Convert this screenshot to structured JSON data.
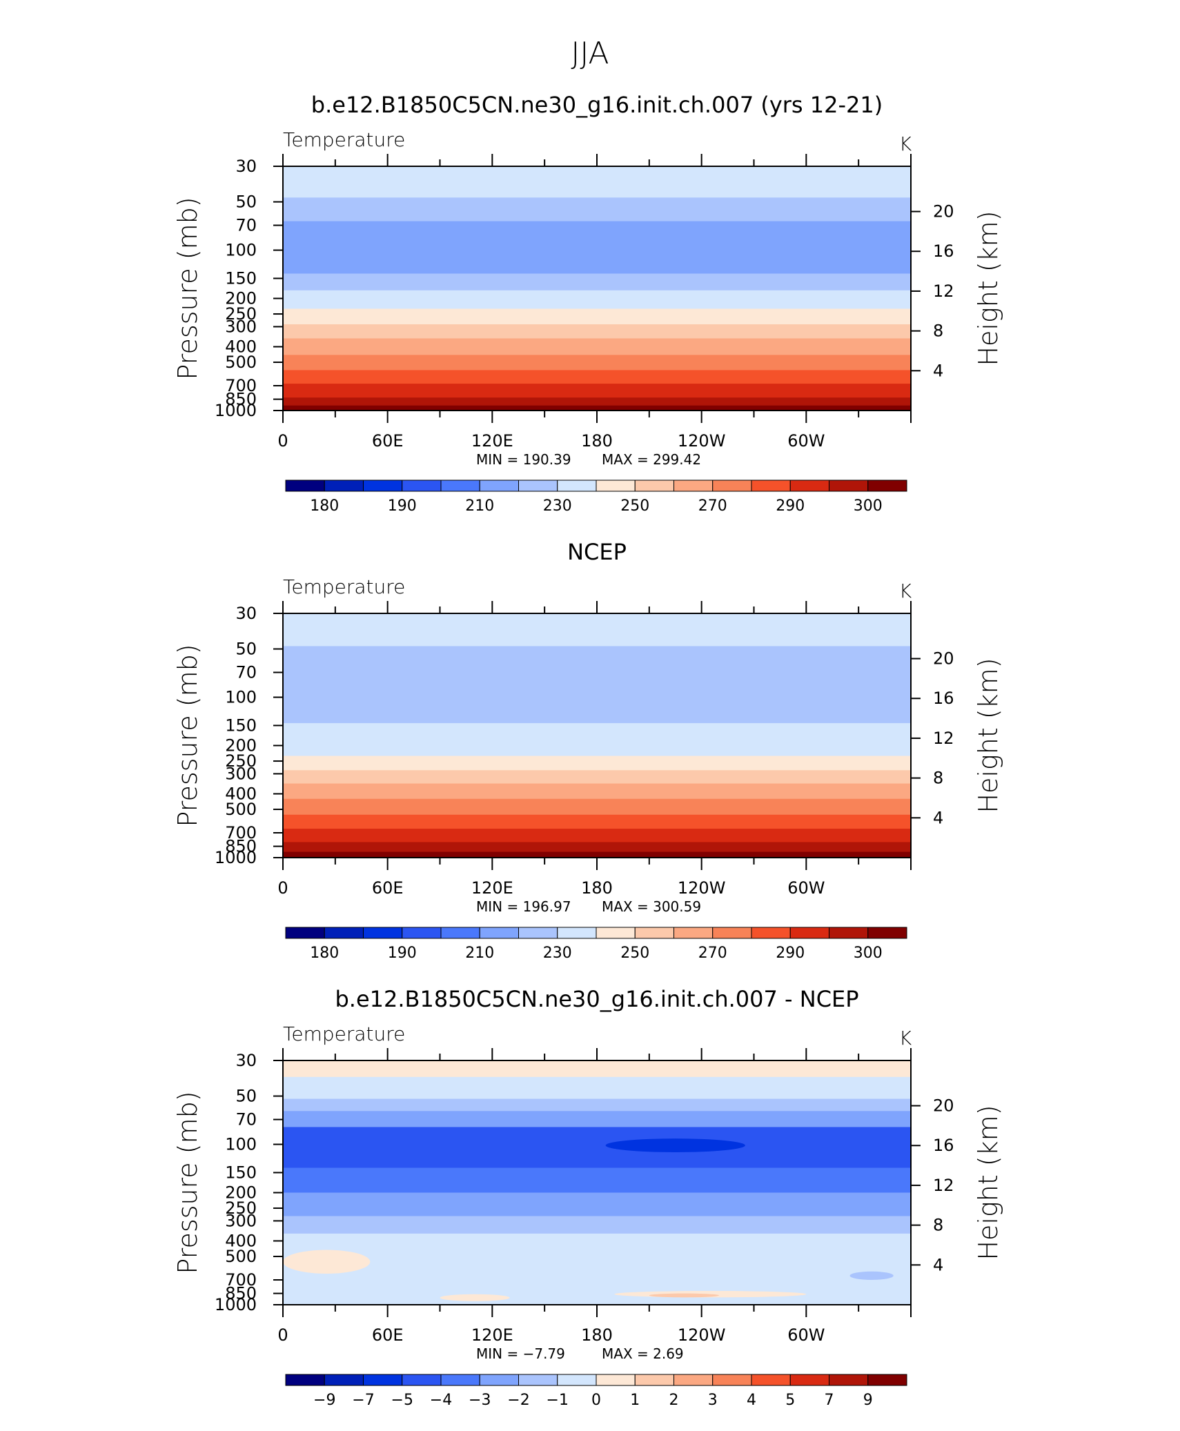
{
  "title": "JJA",
  "palette": [
    "#00007f",
    "#0020b8",
    "#0033e0",
    "#2b55f2",
    "#4a78fb",
    "#7fa4fd",
    "#aac4fd",
    "#d3e6fd",
    "#fde8d6",
    "#fcc9ab",
    "#fba882",
    "#f88358",
    "#f5522a",
    "#d92a12",
    "#b01508",
    "#800000"
  ],
  "chart_data": [
    {
      "type": "heatmap",
      "title": "b.e12.B1850C5CN.ne30_g16.init.ch.007 (yrs 12-21)",
      "variable": "Temperature",
      "units": "K",
      "ylabel": "Pressure (mb)",
      "y2label": "Height (km)",
      "x_ticks": [
        "0",
        "60E",
        "120E",
        "180",
        "120W",
        "60W"
      ],
      "x_tick_lon": [
        0,
        60,
        120,
        180,
        240,
        300
      ],
      "xlim": [
        0,
        360
      ],
      "y_ticks": [
        "30",
        "50",
        "70",
        "100",
        "150",
        "200",
        "250",
        "300",
        "400",
        "500",
        "700",
        "850",
        "1000"
      ],
      "ylim": [
        1000,
        30
      ],
      "y_scale": "log",
      "y2_ticks": [
        "20",
        "16",
        "12",
        "8",
        "4"
      ],
      "min_text": "MIN =  190.39",
      "max_text": "MAX =  299.42",
      "min": 190.39,
      "max": 299.42,
      "levels": [
        175,
        180,
        185,
        190,
        200,
        210,
        220,
        230,
        240,
        250,
        260,
        270,
        280,
        290,
        295,
        300
      ],
      "colorbar_labels": [
        "180",
        "190",
        "210",
        "230",
        "250",
        "270",
        "290",
        "300"
      ],
      "bands": [
        {
          "p_top": 30,
          "p_bottom": 47,
          "value": 222
        },
        {
          "p_top": 47,
          "p_bottom": 66,
          "value": 215
        },
        {
          "p_top": 66,
          "p_bottom": 140,
          "value": 205
        },
        {
          "p_top": 140,
          "p_bottom": 178,
          "value": 215
        },
        {
          "p_top": 178,
          "p_bottom": 232,
          "value": 222
        },
        {
          "p_top": 232,
          "p_bottom": 290,
          "value": 235
        },
        {
          "p_top": 290,
          "p_bottom": 355,
          "value": 245
        },
        {
          "p_top": 355,
          "p_bottom": 450,
          "value": 255
        },
        {
          "p_top": 450,
          "p_bottom": 560,
          "value": 265
        },
        {
          "p_top": 560,
          "p_bottom": 680,
          "value": 275
        },
        {
          "p_top": 680,
          "p_bottom": 830,
          "value": 285
        },
        {
          "p_top": 830,
          "p_bottom": 930,
          "value": 292
        },
        {
          "p_top": 930,
          "p_bottom": 1000,
          "value": 297
        }
      ]
    },
    {
      "type": "heatmap",
      "title": "NCEP",
      "variable": "Temperature",
      "units": "K",
      "ylabel": "Pressure (mb)",
      "y2label": "Height (km)",
      "x_ticks": [
        "0",
        "60E",
        "120E",
        "180",
        "120W",
        "60W"
      ],
      "x_tick_lon": [
        0,
        60,
        120,
        180,
        240,
        300
      ],
      "xlim": [
        0,
        360
      ],
      "y_ticks": [
        "30",
        "50",
        "70",
        "100",
        "150",
        "200",
        "250",
        "300",
        "400",
        "500",
        "700",
        "850",
        "1000"
      ],
      "ylim": [
        1000,
        30
      ],
      "y_scale": "log",
      "y2_ticks": [
        "20",
        "16",
        "12",
        "8",
        "4"
      ],
      "min_text": "MIN =  196.97",
      "max_text": "MAX =  300.59",
      "min": 196.97,
      "max": 300.59,
      "levels": [
        175,
        180,
        185,
        190,
        200,
        210,
        220,
        230,
        240,
        250,
        260,
        270,
        280,
        290,
        295,
        300
      ],
      "colorbar_labels": [
        "180",
        "190",
        "210",
        "230",
        "250",
        "270",
        "290",
        "300"
      ],
      "bands": [
        {
          "p_top": 30,
          "p_bottom": 48,
          "value": 222
        },
        {
          "p_top": 48,
          "p_bottom": 145,
          "value": 215
        },
        {
          "p_top": 145,
          "p_bottom": 185,
          "value": 222
        },
        {
          "p_top": 185,
          "p_bottom": 232,
          "value": 225
        },
        {
          "p_top": 232,
          "p_bottom": 285,
          "value": 235
        },
        {
          "p_top": 285,
          "p_bottom": 345,
          "value": 245
        },
        {
          "p_top": 345,
          "p_bottom": 430,
          "value": 255
        },
        {
          "p_top": 430,
          "p_bottom": 540,
          "value": 265
        },
        {
          "p_top": 540,
          "p_bottom": 660,
          "value": 275
        },
        {
          "p_top": 660,
          "p_bottom": 800,
          "value": 285
        },
        {
          "p_top": 800,
          "p_bottom": 920,
          "value": 292
        },
        {
          "p_top": 920,
          "p_bottom": 1000,
          "value": 297
        }
      ]
    },
    {
      "type": "heatmap",
      "title": "b.e12.B1850C5CN.ne30_g16.init.ch.007 - NCEP",
      "variable": "Temperature",
      "units": "K",
      "ylabel": "Pressure (mb)",
      "y2label": "Height (km)",
      "x_ticks": [
        "0",
        "60E",
        "120E",
        "180",
        "120W",
        "60W"
      ],
      "x_tick_lon": [
        0,
        60,
        120,
        180,
        240,
        300
      ],
      "xlim": [
        0,
        360
      ],
      "y_ticks": [
        "30",
        "50",
        "70",
        "100",
        "150",
        "200",
        "250",
        "300",
        "400",
        "500",
        "700",
        "850",
        "1000"
      ],
      "ylim": [
        1000,
        30
      ],
      "y_scale": "log",
      "y2_ticks": [
        "20",
        "16",
        "12",
        "8",
        "4"
      ],
      "min_text": "MIN =   −7.79",
      "max_text": "MAX =     2.69",
      "min": -7.79,
      "max": 2.69,
      "levels": [
        -11,
        -9,
        -7,
        -5,
        -4,
        -3,
        -2,
        -1,
        0,
        1,
        2,
        3,
        4,
        5,
        7,
        9
      ],
      "colorbar_labels": [
        "−9",
        "−7",
        "−5",
        "−4",
        "−3",
        "−2",
        "−1",
        "0",
        "1",
        "2",
        "3",
        "4",
        "5",
        "7",
        "9"
      ],
      "bands": [
        {
          "p_top": 30,
          "p_bottom": 38,
          "value": -0.5
        },
        {
          "p_top": 38,
          "p_bottom": 52,
          "value": -1.5
        },
        {
          "p_top": 52,
          "p_bottom": 62,
          "value": -2.5
        },
        {
          "p_top": 62,
          "p_bottom": 78,
          "value": -3.5
        },
        {
          "p_top": 78,
          "p_bottom": 140,
          "value": -5.5
        },
        {
          "p_top": 140,
          "p_bottom": 200,
          "value": -4.5
        },
        {
          "p_top": 200,
          "p_bottom": 280,
          "value": -3.5
        },
        {
          "p_top": 280,
          "p_bottom": 360,
          "value": -2.5
        },
        {
          "p_top": 360,
          "p_bottom": 1000,
          "value": -1.5
        }
      ],
      "features": [
        {
          "lon_start": 185,
          "lon_end": 265,
          "p_top": 92,
          "p_bottom": 112,
          "value": -7.5
        },
        {
          "lon_start": 0,
          "lon_end": 50,
          "p_top": 455,
          "p_bottom": 640,
          "value": -0.5
        },
        {
          "lon_start": 90,
          "lon_end": 130,
          "p_top": 860,
          "p_bottom": 950,
          "value": -0.5
        },
        {
          "lon_start": 190,
          "lon_end": 300,
          "p_top": 820,
          "p_bottom": 900,
          "value": -0.5
        },
        {
          "lon_start": 210,
          "lon_end": 250,
          "p_top": 850,
          "p_bottom": 900,
          "value": 0.5
        },
        {
          "lon_start": 325,
          "lon_end": 350,
          "p_top": 620,
          "p_bottom": 700,
          "value": -2.5
        }
      ]
    }
  ]
}
